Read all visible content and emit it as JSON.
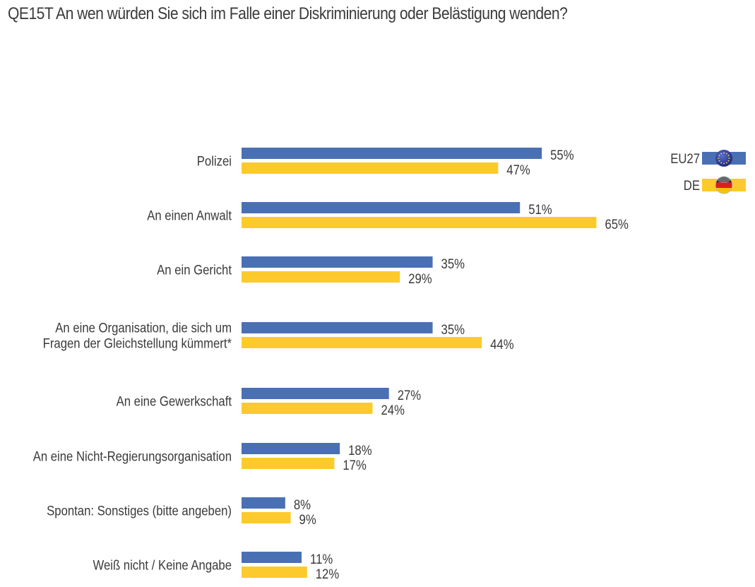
{
  "chart_data": {
    "type": "bar",
    "orientation": "horizontal",
    "title": "QE15T An wen würden Sie sich im Falle einer Diskriminierung oder Belästigung wenden?",
    "xlabel": "",
    "ylabel": "",
    "xlim": [
      0,
      100
    ],
    "grid": false,
    "legend_position": "top-right",
    "categories": [
      [
        "Polizei"
      ],
      [
        "An einen Anwalt"
      ],
      [
        "An ein Gericht"
      ],
      [
        "An eine Organisation, die sich um",
        "Fragen der Gleichstellung kümmert*"
      ],
      [
        "An eine Gewerkschaft"
      ],
      [
        "An eine Nicht-Regierungsorganisation"
      ],
      [
        "Spontan: Sonstiges (bitte angeben)"
      ],
      [
        "Weiß nicht / Keine Angabe"
      ]
    ],
    "series": [
      {
        "name": "EU27",
        "color": "#4a70b4",
        "flag_icon": "eu-flag-icon",
        "values": [
          55,
          51,
          35,
          35,
          27,
          18,
          8,
          11
        ],
        "labels": [
          "55%",
          "51%",
          "35%",
          "35%",
          "27%",
          "18%",
          "8%",
          "11%"
        ]
      },
      {
        "name": "DE",
        "color": "#fcca2c",
        "flag_icon": "germany-flag-icon",
        "values": [
          47,
          65,
          29,
          44,
          24,
          17,
          9,
          12
        ],
        "labels": [
          "47%",
          "65%",
          "29%",
          "44%",
          "24%",
          "17%",
          "9%",
          "12%"
        ]
      }
    ]
  }
}
